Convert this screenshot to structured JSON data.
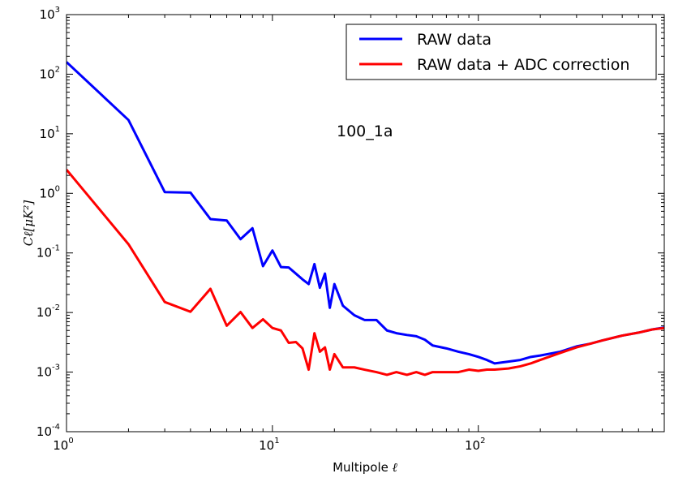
{
  "chart_data": {
    "type": "line",
    "title": "",
    "annotation": "100_1a",
    "xlabel": "Multipole ",
    "xlabel_symbol": "ℓ",
    "ylabel": "Cℓ[μK²]",
    "xscale": "log",
    "yscale": "log",
    "xlim": [
      1,
      800
    ],
    "ylim": [
      0.0001,
      1000
    ],
    "legend_position": "top-right",
    "x_ticks": [
      {
        "value": 1,
        "base": "10",
        "exp": "0"
      },
      {
        "value": 10,
        "base": "10",
        "exp": "1"
      },
      {
        "value": 100,
        "base": "10",
        "exp": "2"
      }
    ],
    "y_ticks": [
      {
        "value": 0.0001,
        "base": "10",
        "exp": "-4"
      },
      {
        "value": 0.001,
        "base": "10",
        "exp": "-3"
      },
      {
        "value": 0.01,
        "base": "10",
        "exp": "-2"
      },
      {
        "value": 0.1,
        "base": "10",
        "exp": "-1"
      },
      {
        "value": 1,
        "base": "10",
        "exp": "0"
      },
      {
        "value": 10,
        "base": "10",
        "exp": "1"
      },
      {
        "value": 100,
        "base": "10",
        "exp": "2"
      },
      {
        "value": 1000,
        "base": "10",
        "exp": "3"
      }
    ],
    "series": [
      {
        "name": "RAW data",
        "color": "#0000ff",
        "x": [
          1,
          2,
          3,
          4,
          5,
          6,
          7,
          8,
          9,
          10,
          11,
          12,
          13,
          14,
          15,
          16,
          17,
          18,
          19,
          20,
          22,
          25,
          28,
          32,
          36,
          40,
          45,
          50,
          55,
          60,
          70,
          80,
          90,
          100,
          110,
          120,
          140,
          160,
          180,
          200,
          250,
          300,
          350,
          400,
          500,
          600,
          700,
          800
        ],
        "y": [
          160,
          17,
          1.05,
          1.03,
          0.37,
          0.35,
          0.17,
          0.26,
          0.06,
          0.11,
          0.058,
          0.057,
          0.045,
          0.036,
          0.03,
          0.065,
          0.026,
          0.045,
          0.012,
          0.03,
          0.013,
          0.009,
          0.0075,
          0.0075,
          0.005,
          0.0045,
          0.0042,
          0.004,
          0.0035,
          0.0028,
          0.0025,
          0.0022,
          0.002,
          0.0018,
          0.0016,
          0.0014,
          0.0015,
          0.0016,
          0.0018,
          0.0019,
          0.0022,
          0.0027,
          0.003,
          0.0034,
          0.0041,
          0.0046,
          0.0052,
          0.0056
        ]
      },
      {
        "name": "RAW data + ADC correction",
        "color": "#ff0000",
        "x": [
          1,
          2,
          3,
          4,
          5,
          6,
          7,
          8,
          9,
          10,
          11,
          12,
          13,
          14,
          15,
          16,
          17,
          18,
          19,
          20,
          22,
          25,
          28,
          32,
          36,
          40,
          45,
          50,
          55,
          60,
          70,
          80,
          90,
          100,
          110,
          120,
          140,
          160,
          180,
          200,
          250,
          300,
          350,
          400,
          500,
          600,
          700,
          800
        ],
        "y": [
          2.5,
          0.14,
          0.015,
          0.0103,
          0.025,
          0.006,
          0.0102,
          0.0055,
          0.0077,
          0.0055,
          0.005,
          0.0031,
          0.0032,
          0.0025,
          0.0011,
          0.0045,
          0.0022,
          0.0026,
          0.0011,
          0.002,
          0.0012,
          0.0012,
          0.0011,
          0.001,
          0.0009,
          0.001,
          0.0009,
          0.001,
          0.0009,
          0.001,
          0.001,
          0.001,
          0.0011,
          0.00105,
          0.0011,
          0.0011,
          0.00115,
          0.00125,
          0.0014,
          0.0016,
          0.0021,
          0.0026,
          0.003,
          0.0034,
          0.0041,
          0.0046,
          0.0052,
          0.0055
        ]
      }
    ]
  }
}
